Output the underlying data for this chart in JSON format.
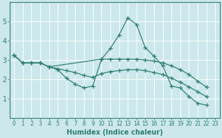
{
  "xlabel": "Humidex (Indice chaleur)",
  "background_color": "#cce8ec",
  "line_color": "#2e7d6e",
  "grid_color": "#ffffff",
  "xlim": [
    -0.5,
    23.5
  ],
  "ylim": [
    0,
    6
  ],
  "yticks": [
    1,
    2,
    3,
    4,
    5
  ],
  "xticks": [
    0,
    1,
    2,
    3,
    4,
    5,
    6,
    7,
    8,
    9,
    10,
    11,
    12,
    13,
    14,
    15,
    16,
    17,
    18,
    19,
    20,
    21,
    22,
    23
  ],
  "lines": [
    {
      "x": [
        0,
        1,
        2,
        3,
        4,
        5,
        6,
        7,
        8,
        9,
        10,
        11,
        12,
        13,
        14,
        15,
        16,
        17,
        18,
        19,
        20,
        21,
        22
      ],
      "y": [
        3.25,
        2.85,
        2.85,
        2.85,
        2.65,
        2.5,
        2.05,
        1.75,
        1.55,
        1.65,
        3.05,
        3.6,
        4.3,
        5.2,
        4.85,
        3.65,
        3.2,
        2.7,
        1.65,
        1.55,
        1.1,
        0.75,
        0.65
      ]
    },
    {
      "x": [
        0,
        1,
        2,
        3,
        4,
        10,
        11,
        12,
        13,
        14,
        15,
        16,
        17,
        18,
        19,
        20,
        21,
        22
      ],
      "y": [
        3.25,
        2.85,
        2.85,
        2.85,
        2.65,
        3.05,
        3.05,
        3.05,
        3.05,
        3.05,
        3.0,
        2.95,
        2.85,
        2.7,
        2.5,
        2.25,
        1.9,
        1.6
      ]
    },
    {
      "x": [
        0,
        1,
        2,
        3,
        4,
        5,
        6,
        7,
        8,
        9,
        10,
        11,
        12,
        13,
        14,
        15,
        16,
        17,
        18,
        19,
        20,
        21,
        22
      ],
      "y": [
        3.25,
        2.85,
        2.85,
        2.85,
        2.65,
        2.55,
        2.45,
        2.35,
        2.2,
        2.1,
        2.3,
        2.4,
        2.45,
        2.5,
        2.5,
        2.45,
        2.35,
        2.25,
        2.05,
        1.85,
        1.6,
        1.35,
        1.1
      ]
    }
  ]
}
